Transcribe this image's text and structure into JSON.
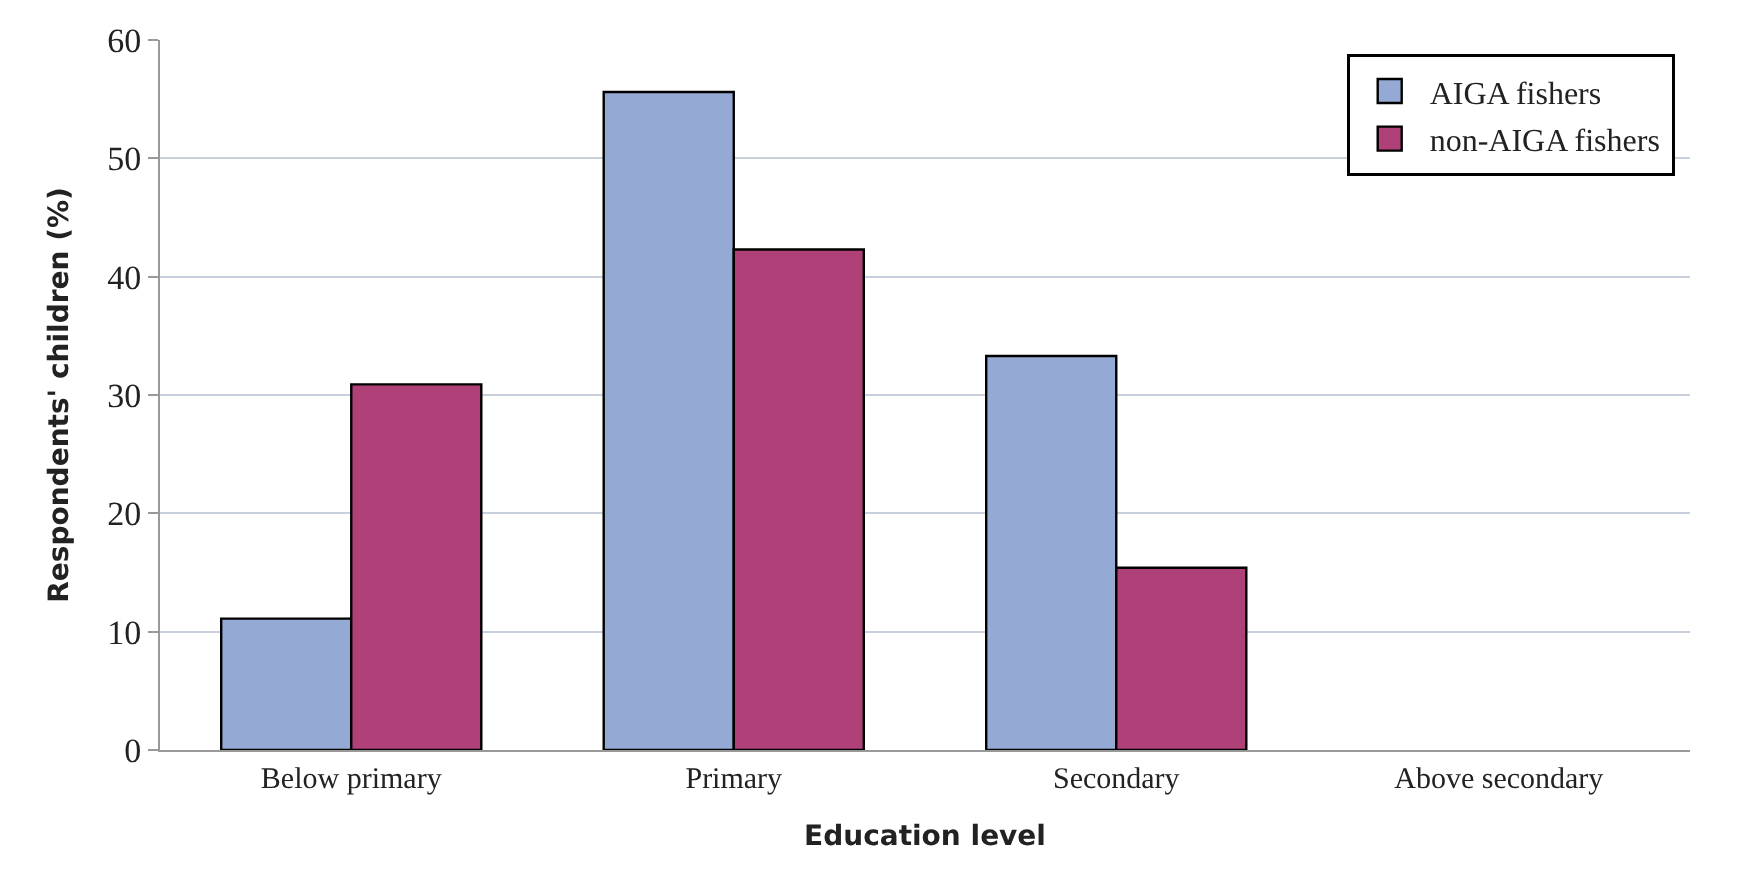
{
  "chart_data": {
    "type": "bar",
    "xlabel": "Education level",
    "ylabel": "Respondents' children (%)",
    "categories": [
      "Below primary",
      "Primary",
      "Secondary",
      "Above secondary"
    ],
    "series": [
      {
        "name": "AIGA fishers",
        "color": "#95a9d5",
        "values": [
          11.1,
          55.6,
          33.3,
          null
        ]
      },
      {
        "name": "non-AIGA fishers",
        "color": "#b04078",
        "values": [
          30.9,
          42.3,
          15.4,
          null
        ]
      }
    ],
    "ylim": [
      0,
      60
    ],
    "yticks": [
      0,
      10,
      20,
      30,
      40,
      50,
      60
    ],
    "grid": "y",
    "legend": "top right"
  }
}
